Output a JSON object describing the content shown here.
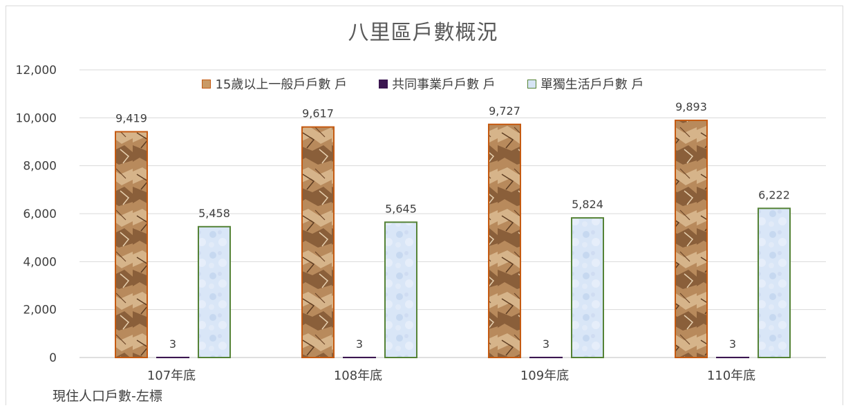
{
  "chart_data": {
    "type": "bar",
    "title": "八里區戶數概況",
    "categories": [
      "107年底",
      "108年底",
      "109年底",
      "110年底"
    ],
    "series": [
      {
        "name": "15歲以上一般戶戶數 戶",
        "values": [
          9419,
          9617,
          9727,
          9893
        ],
        "color": "#c99a66",
        "stroke": "#c55a11"
      },
      {
        "name": "共同事業戶戶數 戶",
        "values": [
          3,
          3,
          3,
          3
        ],
        "color": "#3b1650",
        "stroke": "#3b1650"
      },
      {
        "name": "單獨生活戶戶數 戶",
        "values": [
          5458,
          5645,
          5824,
          6222
        ],
        "color": "#d6e4f5",
        "stroke": "#548235"
      }
    ],
    "data_labels": [
      [
        "9,419",
        "9,617",
        "9,727",
        "9,893"
      ],
      [
        "3",
        "3",
        "3",
        "3"
      ],
      [
        "5,458",
        "5,645",
        "5,824",
        "6,222"
      ]
    ],
    "yticks": [
      "0",
      "2,000",
      "4,000",
      "6,000",
      "8,000",
      "10,000",
      "12,000"
    ],
    "ylim": [
      0,
      12000
    ],
    "grid": true,
    "legend_position": "top",
    "footnote": "現住人口戶數-左標"
  }
}
